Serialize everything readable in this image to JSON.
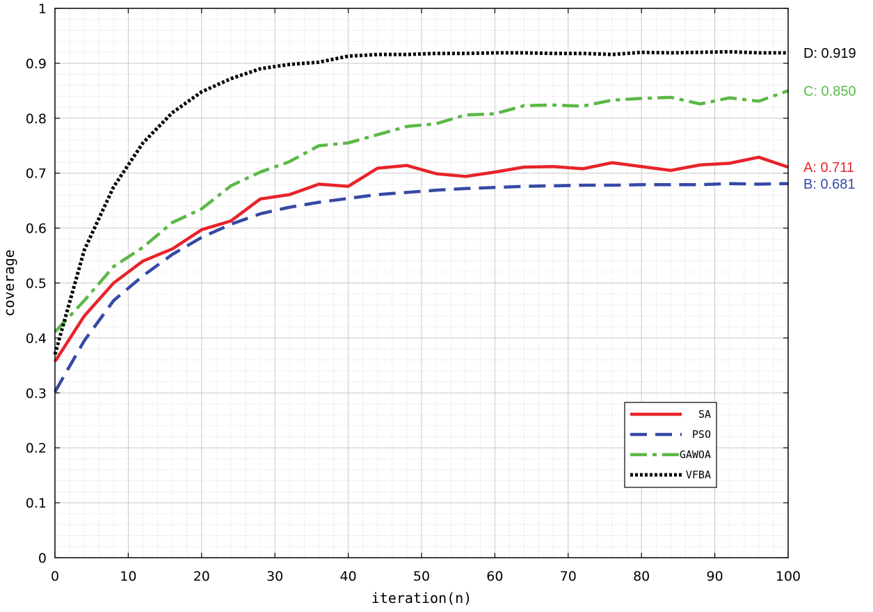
{
  "chart_data": {
    "type": "line",
    "title": "",
    "xlabel": "iteration(n)",
    "ylabel": "coverage",
    "xlim": [
      0,
      100
    ],
    "ylim": [
      0,
      1
    ],
    "xticks": [
      "0",
      "10",
      "20",
      "30",
      "40",
      "50",
      "60",
      "70",
      "80",
      "90",
      "100"
    ],
    "yticks": [
      "0",
      "0.1",
      "0.2",
      "0.3",
      "0.4",
      "0.5",
      "0.6",
      "0.7",
      "0.8",
      "0.9",
      "1"
    ],
    "grid": true,
    "minor_grid": true,
    "legend_position": "lower-right",
    "x": [
      0,
      4,
      8,
      12,
      16,
      20,
      24,
      28,
      32,
      36,
      40,
      44,
      48,
      52,
      56,
      60,
      64,
      68,
      72,
      76,
      80,
      84,
      88,
      92,
      96,
      100
    ],
    "series": [
      {
        "name": "SA",
        "color": "#e8232a",
        "style": "solid",
        "values": [
          0.357,
          0.44,
          0.5,
          0.54,
          0.562,
          0.597,
          0.613,
          0.653,
          0.661,
          0.68,
          0.676,
          0.709,
          0.714,
          0.699,
          0.694,
          0.702,
          0.711,
          0.712,
          0.708,
          0.719,
          0.712,
          0.705,
          0.715,
          0.718,
          0.729,
          0.711
        ],
        "end_label": "A: 0.711"
      },
      {
        "name": "PSO",
        "color": "#3549a5",
        "style": "dashed",
        "values": [
          0.302,
          0.395,
          0.468,
          0.513,
          0.552,
          0.583,
          0.607,
          0.626,
          0.638,
          0.647,
          0.654,
          0.661,
          0.665,
          0.669,
          0.672,
          0.674,
          0.676,
          0.677,
          0.678,
          0.678,
          0.679,
          0.679,
          0.679,
          0.681,
          0.68,
          0.681
        ],
        "end_label": "B: 0.681"
      },
      {
        "name": "GAWOA",
        "color": "#5bb845",
        "style": "dashdot",
        "values": [
          0.411,
          0.468,
          0.53,
          0.565,
          0.61,
          0.635,
          0.677,
          0.702,
          0.721,
          0.75,
          0.755,
          0.77,
          0.785,
          0.79,
          0.806,
          0.808,
          0.823,
          0.824,
          0.822,
          0.833,
          0.836,
          0.838,
          0.826,
          0.837,
          0.831,
          0.85
        ],
        "end_label": "C: 0.850"
      },
      {
        "name": "VFBA",
        "color": "#000000",
        "style": "dotted",
        "values": [
          0.37,
          0.56,
          0.675,
          0.755,
          0.81,
          0.848,
          0.872,
          0.89,
          0.898,
          0.902,
          0.913,
          0.916,
          0.916,
          0.918,
          0.918,
          0.919,
          0.919,
          0.918,
          0.918,
          0.916,
          0.92,
          0.919,
          0.92,
          0.921,
          0.919,
          0.919
        ],
        "end_label": "D: 0.919"
      }
    ]
  }
}
